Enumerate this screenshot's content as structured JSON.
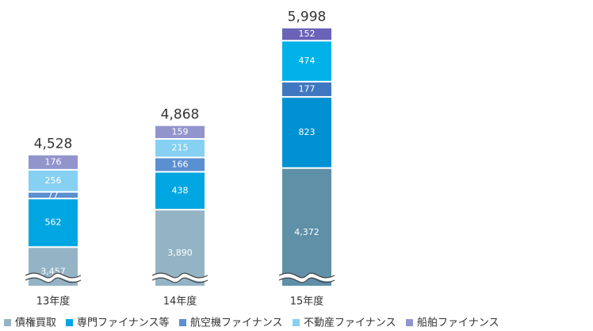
{
  "chart_data": {
    "type": "stacked_bar",
    "categories": [
      "13年度",
      "14年度",
      "15年度"
    ],
    "series": [
      {
        "name": "債権買取",
        "color": "#94b4c6",
        "values": [
          3457,
          3890,
          4372
        ],
        "value_labels": [
          "3,457",
          "3,890",
          "4,372"
        ]
      },
      {
        "name": "専門ファイナンス等",
        "color": "#00a6e2",
        "values": [
          562,
          438,
          823
        ]
      },
      {
        "name": "航空機ファイナンス",
        "color": "#5a8fd0",
        "values": [
          77,
          166,
          177
        ]
      },
      {
        "name": "不動産ファイナンス",
        "color": "#86d0f2",
        "values": [
          256,
          215,
          474
        ]
      },
      {
        "name": "船舶ファイナンス",
        "color": "#9294cc",
        "values": [
          176,
          159,
          152
        ]
      }
    ],
    "highlight_category": 2,
    "highlight_colors": [
      "#5f90a8",
      "#0091d2",
      "#3f78c0",
      "#00b2e8",
      "#6a63b8"
    ],
    "totals": [
      4528,
      4868,
      5998
    ],
    "total_labels": [
      "4,528",
      "4,868",
      "5,998"
    ],
    "ylim": [
      3000,
      6000
    ],
    "axis_break": true
  }
}
